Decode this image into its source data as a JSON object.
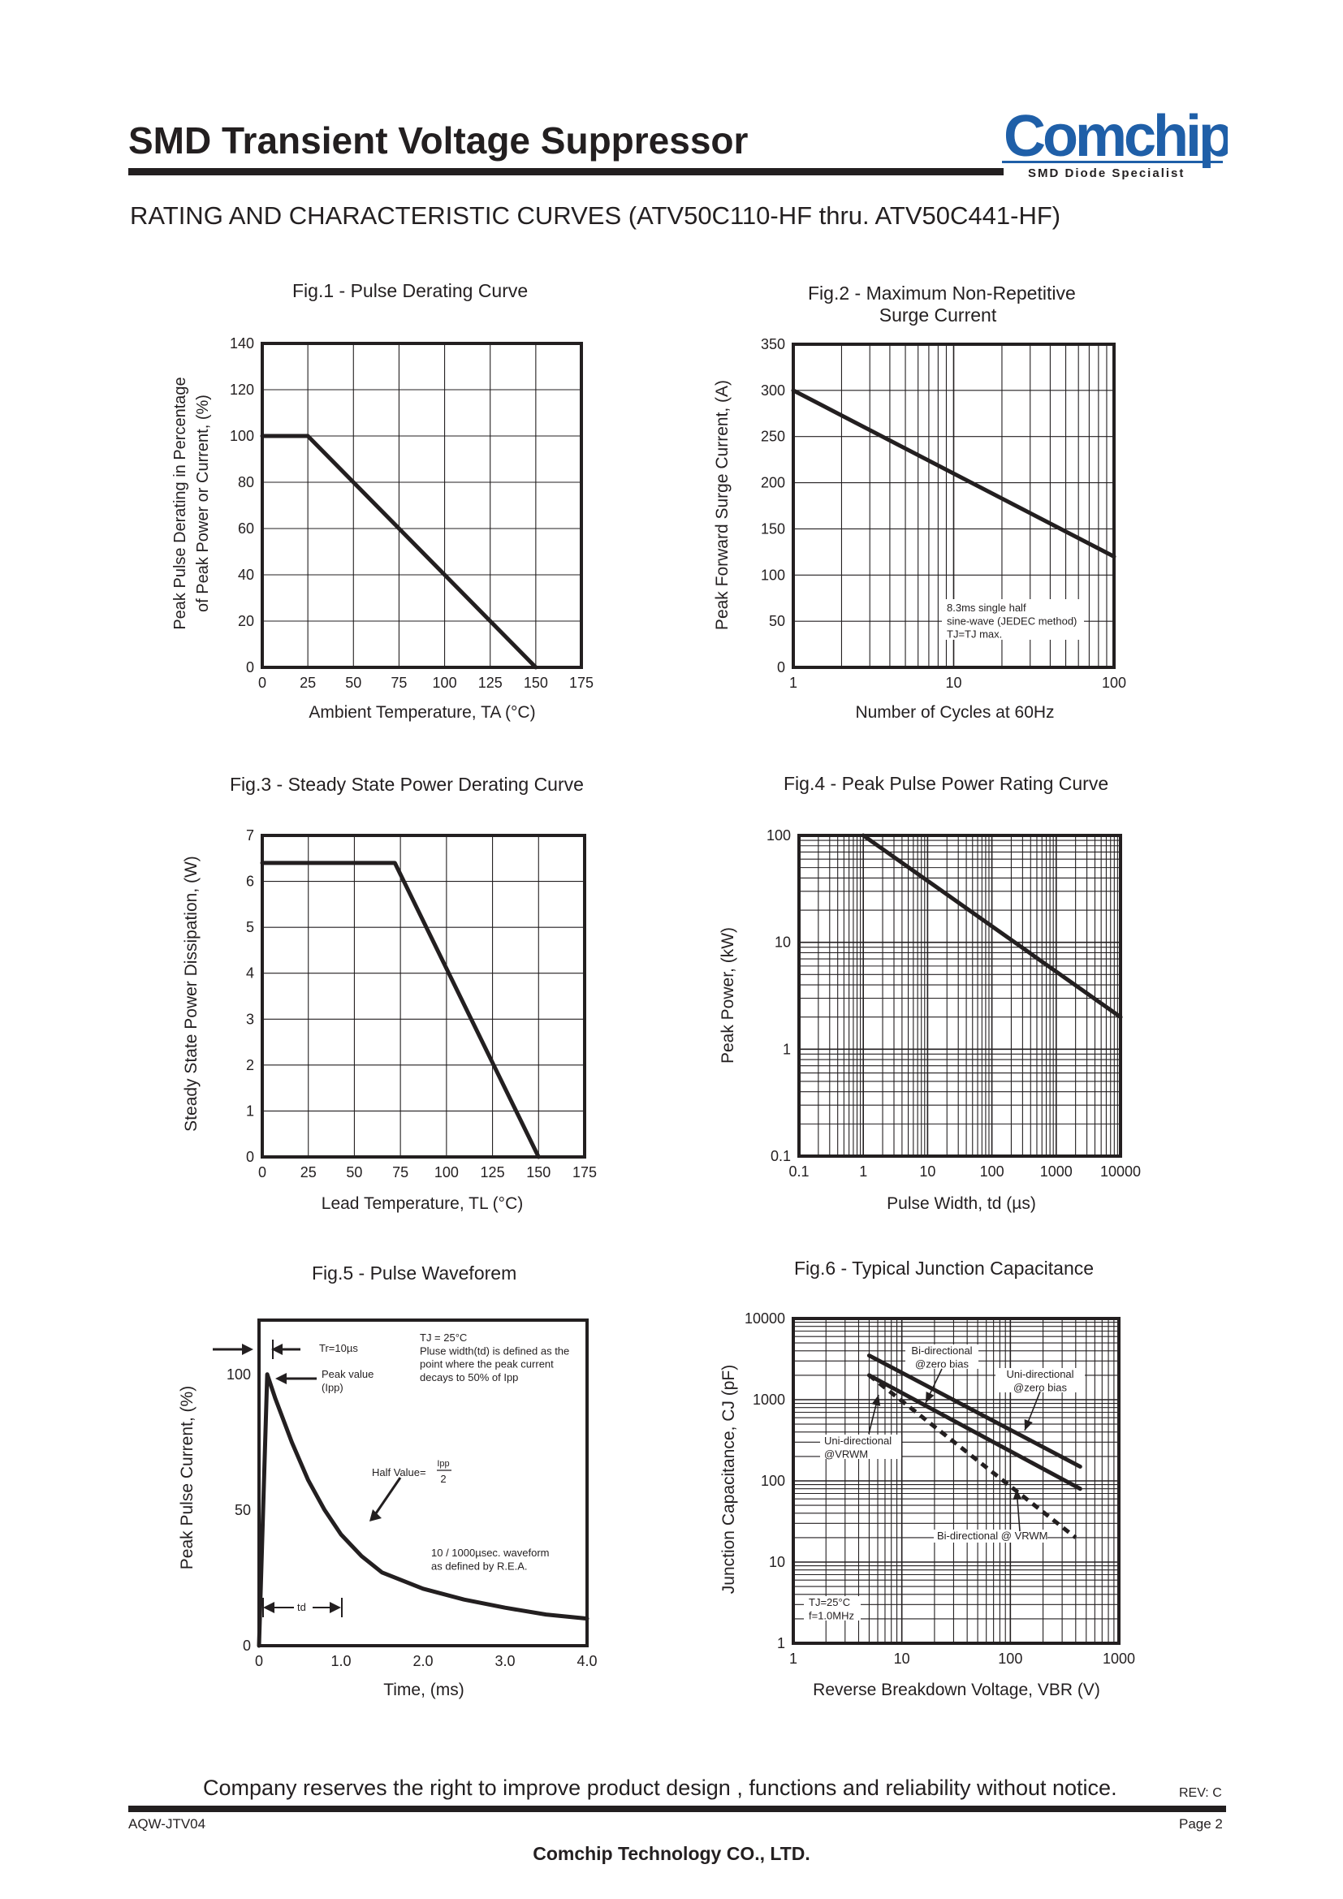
{
  "header": {
    "title": "SMD Transient Voltage Suppressor",
    "subtitle": "RATING AND CHARACTERISTIC CURVES (ATV50C110-HF thru. ATV50C441-HF)",
    "logo_text": "Comchip",
    "logo_tagline": "SMD Diode Specialist"
  },
  "footer": {
    "notice": "Company reserves the right to improve product design , functions and reliability without notice.",
    "rev": "REV: C",
    "doc": "AQW-JTV04",
    "page": "Page 2",
    "company": "Comchip Technology CO., LTD."
  },
  "colors": {
    "ink": "#231f20",
    "grid": "#231f20"
  },
  "chart_data": [
    {
      "type": "line",
      "title": "Fig.1 - Pulse Derating Curve",
      "xlabel": "Ambient Temperature, TA (°C)",
      "ylabel_lines": [
        "Peak Pulse Derating in Percentage",
        "of Peak Power or Current, (%)"
      ],
      "xscale": "linear",
      "yscale": "linear",
      "xlim": [
        0,
        175
      ],
      "ylim": [
        0,
        140
      ],
      "xticks": [
        0,
        25,
        50,
        75,
        100,
        125,
        150,
        175
      ],
      "yticks": [
        0,
        20,
        40,
        60,
        80,
        100,
        120,
        140
      ],
      "xtick_labels": [
        "0",
        "25",
        "50",
        "75",
        "100",
        "125",
        "150",
        "175"
      ],
      "ytick_labels": [
        "0",
        "20",
        "40",
        "60",
        "80",
        "100",
        "120",
        "140"
      ],
      "grid": true,
      "series": [
        {
          "x": [
            0,
            25,
            150
          ],
          "y": [
            100,
            100,
            0
          ]
        }
      ],
      "annotations": []
    },
    {
      "type": "line",
      "title_lines": [
        "Fig.2 - Maximum Non-Repetitive",
        "Surge Current"
      ],
      "xlabel": "Number of Cycles at 60Hz",
      "ylabel": "Peak Forward Surge Current, (A)",
      "xscale": "log",
      "yscale": "linear",
      "xlim": [
        1,
        100
      ],
      "ylim": [
        0,
        350
      ],
      "xticks": [
        1,
        10,
        100
      ],
      "yticks": [
        0,
        50,
        100,
        150,
        200,
        250,
        300,
        350
      ],
      "xtick_labels": [
        "1",
        "10",
        "100"
      ],
      "ytick_labels": [
        "0",
        "50",
        "100",
        "150",
        "200",
        "250",
        "300",
        "350"
      ],
      "grid": true,
      "series": [
        {
          "x": [
            1,
            100
          ],
          "y": [
            300,
            120
          ]
        }
      ],
      "annotations": [
        {
          "lines": [
            "8.3ms single half",
            "sine-wave (JEDEC method)",
            "TJ=TJ max."
          ]
        }
      ]
    },
    {
      "type": "line",
      "title": "Fig.3 - Steady State Power Derating Curve",
      "xlabel": "Lead Temperature, TL (°C)",
      "ylabel": "Steady State Power Dissipation, (W)",
      "xscale": "linear",
      "yscale": "linear",
      "xlim": [
        0,
        175
      ],
      "ylim": [
        0,
        7
      ],
      "xticks": [
        0,
        25,
        50,
        75,
        100,
        125,
        150,
        175
      ],
      "yticks": [
        0,
        1,
        2,
        3,
        4,
        5,
        6,
        7
      ],
      "xtick_labels": [
        "0",
        "25",
        "50",
        "75",
        "100",
        "125",
        "150",
        "175"
      ],
      "ytick_labels": [
        "0",
        "1",
        "2",
        "3",
        "4",
        "5",
        "6",
        "7"
      ],
      "grid": true,
      "series": [
        {
          "x": [
            0,
            72,
            150
          ],
          "y": [
            6.4,
            6.4,
            0
          ]
        }
      ],
      "annotations": []
    },
    {
      "type": "line",
      "title": "Fig.4 - Peak Pulse Power Rating Curve",
      "xlabel": "Pulse Width, td (µs)",
      "ylabel": "Peak Power, (kW)",
      "xscale": "log",
      "yscale": "log",
      "xlim": [
        0.1,
        10000
      ],
      "ylim": [
        0.1,
        100
      ],
      "xticks": [
        0.1,
        1,
        10,
        100,
        1000,
        10000
      ],
      "yticks": [
        0.1,
        1,
        10,
        100
      ],
      "xtick_labels": [
        "0.1",
        "1",
        "10",
        "100",
        "1000",
        "10000"
      ],
      "ytick_labels": [
        "0.1",
        "1",
        "10",
        "100"
      ],
      "grid": true,
      "series": [
        {
          "x": [
            1,
            10000
          ],
          "y": [
            100,
            2
          ]
        }
      ],
      "annotations": []
    },
    {
      "type": "line",
      "title": "Fig.5 - Pulse Waveforem",
      "xlabel": "Time, (ms)",
      "ylabel": "Peak Pulse Current, (%)",
      "xscale": "linear",
      "yscale": "linear",
      "xlim": [
        0,
        4
      ],
      "ylim": [
        0,
        120
      ],
      "xticks": [
        0,
        1,
        2,
        3,
        4
      ],
      "yticks": [
        0,
        50,
        100
      ],
      "xtick_labels": [
        "0",
        "1.0",
        "2.0",
        "3.0",
        "4.0"
      ],
      "ytick_labels": [
        "0",
        "50",
        "100"
      ],
      "grid": false,
      "series": [
        {
          "x": [
            0,
            0.1,
            0.2,
            0.4,
            0.6,
            0.8,
            1.0,
            1.25,
            1.5,
            2.0,
            2.5,
            3.0,
            3.5,
            4.0
          ],
          "y": [
            0,
            100,
            91,
            75,
            61,
            50,
            41,
            33,
            27,
            21,
            17,
            14,
            11.5,
            10
          ]
        }
      ],
      "annotations": [
        {
          "lines": [
            "TJ = 25°C",
            "Pluse width(td) is defined as the",
            "point where the peak current",
            "decays to 50% of Ipp"
          ]
        },
        {
          "lines": [
            "Tr=10µs"
          ]
        },
        {
          "lines": [
            "Peak value",
            "(Ipp)"
          ]
        },
        {
          "lines": [
            "Half Value=",
            "Ipp",
            "2"
          ]
        },
        {
          "lines": [
            "10 / 1000µsec. waveform",
            "as defined by R.E.A."
          ]
        },
        {
          "lines": [
            "td"
          ]
        }
      ]
    },
    {
      "type": "line",
      "title": "Fig.6 - Typical Junction Capacitance",
      "xlabel": "Reverse Breakdown Voltage, VBR (V)",
      "ylabel": "Junction Capacitance, CJ (pF)",
      "xscale": "log",
      "yscale": "log",
      "xlim": [
        1,
        1000
      ],
      "ylim": [
        1,
        10000
      ],
      "xticks": [
        1,
        10,
        100,
        1000
      ],
      "yticks": [
        1,
        10,
        100,
        1000,
        10000
      ],
      "xtick_labels": [
        "1",
        "10",
        "100",
        "1000"
      ],
      "ytick_labels": [
        "1",
        "10",
        "100",
        "1000",
        "10000"
      ],
      "grid": true,
      "series": [
        {
          "x": [
            5,
            440
          ],
          "y": [
            3500,
            150
          ],
          "style": "solid"
        },
        {
          "x": [
            5,
            440
          ],
          "y": [
            2000,
            80
          ],
          "style": "solid"
        },
        {
          "x": [
            5,
            400
          ],
          "y": [
            2000,
            20
          ],
          "style": "dashed"
        }
      ],
      "annotations": [
        {
          "lines": [
            "Bi-directional",
            "@zero bias"
          ]
        },
        {
          "lines": [
            "Uni-directional",
            "@zero bias"
          ]
        },
        {
          "lines": [
            "Uni-directional",
            "@VRWM"
          ]
        },
        {
          "lines": [
            "Bi-directional @ VRWM"
          ]
        },
        {
          "lines": [
            "TJ=25°C",
            "f=1.0MHz"
          ]
        }
      ]
    }
  ]
}
